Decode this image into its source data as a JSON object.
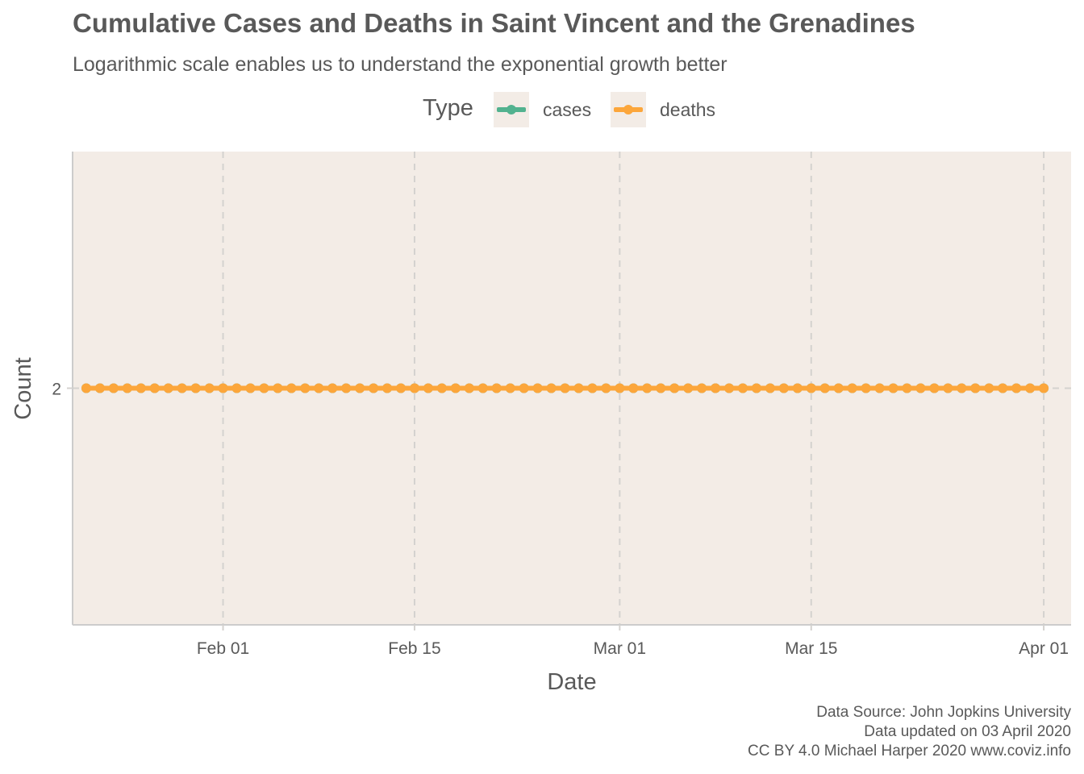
{
  "title": "Cumulative Cases and Deaths in Saint Vincent and the Grenadines",
  "subtitle": "Logarithmic scale enables us to understand the exponential growth better",
  "legend": {
    "title": "Type",
    "items": [
      {
        "label": "cases",
        "color": "#52b28f"
      },
      {
        "label": "deaths",
        "color": "#fca63b"
      }
    ]
  },
  "caption": [
    "Data Source: John Jopkins University",
    "Data updated on 03 April 2020",
    "CC BY 4.0 Michael Harper 2020 www.coviz.info"
  ],
  "chart_data": {
    "type": "line",
    "title": "Cumulative Cases and Deaths in Saint Vincent and the Grenadines",
    "subtitle": "Logarithmic scale enables us to understand the exponential growth better",
    "xlabel": "Date",
    "ylabel": "Count",
    "y_scale": "log",
    "x_range": [
      "2020-01-21",
      "2020-04-03"
    ],
    "y_range": [
      1.0,
      4.0
    ],
    "x_ticks": [
      {
        "date": "2020-02-01",
        "label": "Feb 01"
      },
      {
        "date": "2020-02-15",
        "label": "Feb 15"
      },
      {
        "date": "2020-03-01",
        "label": "Mar 01"
      },
      {
        "date": "2020-03-15",
        "label": "Mar 15"
      },
      {
        "date": "2020-04-01",
        "label": "Apr 01"
      }
    ],
    "y_ticks": [
      {
        "value": 2,
        "label": "2"
      }
    ],
    "grid": true,
    "legend_position": "top",
    "colors": {
      "background": "#f3ece6",
      "grid": "#d4d2cf",
      "axis": "#cccccc"
    },
    "series": [
      {
        "name": "cases",
        "color": "#52b28f",
        "start": "2020-01-22",
        "end": "2020-04-01",
        "value": 2
      },
      {
        "name": "deaths",
        "color": "#fca63b",
        "start": "2020-01-22",
        "end": "2020-04-01",
        "value": 2
      }
    ]
  }
}
